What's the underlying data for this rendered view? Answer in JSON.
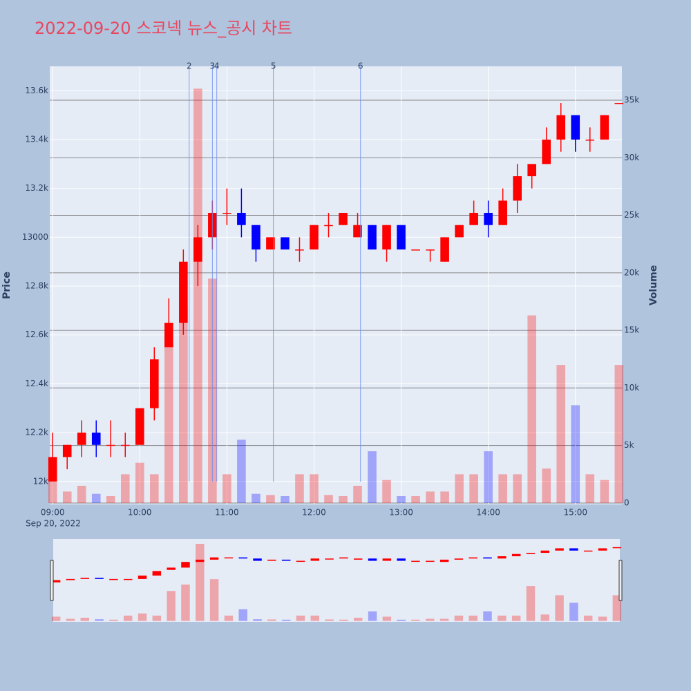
{
  "chart_data": {
    "type": "candlestick",
    "title": "2022-09-20 스코넥 뉴스_공시 차트",
    "ylabel": "Price",
    "y2label": "Volume",
    "x_date": "Sep 20, 2022",
    "x": [
      "09:00",
      "09:10",
      "09:20",
      "09:30",
      "09:40",
      "09:50",
      "10:00",
      "10:10",
      "10:20",
      "10:30",
      "10:40",
      "10:50",
      "11:00",
      "11:10",
      "11:20",
      "11:30",
      "11:40",
      "11:50",
      "12:00",
      "12:10",
      "12:20",
      "12:30",
      "12:40",
      "12:50",
      "13:00",
      "13:10",
      "13:20",
      "13:30",
      "13:40",
      "13:50",
      "14:00",
      "14:10",
      "14:20",
      "14:30",
      "14:40",
      "14:50",
      "15:00",
      "15:10",
      "15:20",
      "15:30"
    ],
    "open": [
      12000,
      12100,
      12150,
      12200,
      12150,
      12150,
      12150,
      12300,
      12550,
      12650,
      12900,
      13000,
      13100,
      13100,
      13050,
      12950,
      13000,
      12950,
      12950,
      13050,
      13050,
      13000,
      13050,
      12950,
      13050,
      12950,
      12950,
      12900,
      13000,
      13050,
      13100,
      13050,
      13150,
      13250,
      13300,
      13400,
      13500,
      13400,
      13400,
      13550
    ],
    "high": [
      12200,
      12150,
      12250,
      12250,
      12250,
      12200,
      12300,
      12550,
      12750,
      12950,
      13050,
      13150,
      13200,
      13200,
      13050,
      13000,
      13000,
      13000,
      13050,
      13100,
      13100,
      13100,
      13050,
      13050,
      13050,
      12950,
      12950,
      13000,
      13050,
      13150,
      13150,
      13200,
      13300,
      13300,
      13450,
      13550,
      13500,
      13450,
      13500,
      13550
    ],
    "low": [
      12000,
      12050,
      12100,
      12100,
      12100,
      12100,
      12150,
      12250,
      12550,
      12600,
      12800,
      12950,
      13050,
      13000,
      12900,
      12950,
      12950,
      12900,
      12950,
      13000,
      13050,
      13000,
      12950,
      12900,
      12950,
      12950,
      12900,
      12900,
      13000,
      13050,
      13000,
      13050,
      13100,
      13200,
      13300,
      13350,
      13350,
      13350,
      13400,
      13550
    ],
    "close": [
      12100,
      12150,
      12200,
      12150,
      12150,
      12150,
      12300,
      12500,
      12650,
      12900,
      13000,
      13100,
      13100,
      13050,
      12950,
      13000,
      12950,
      12950,
      13050,
      13050,
      13100,
      13050,
      12950,
      13050,
      12950,
      12950,
      12950,
      13000,
      13050,
      13100,
      13050,
      13150,
      13250,
      13300,
      13400,
      13500,
      13400,
      13400,
      13500,
      13550
    ],
    "volume": [
      2000,
      1000,
      1500,
      800,
      600,
      2500,
      3500,
      2500,
      14000,
      17000,
      36000,
      19500,
      2500,
      5500,
      800,
      700,
      600,
      2500,
      2500,
      700,
      600,
      1500,
      4500,
      2000,
      600,
      600,
      1000,
      1000,
      2500,
      2500,
      4500,
      2500,
      2500,
      16300,
      3000,
      12000,
      8500,
      2500,
      2000,
      12000
    ],
    "increasing_color": "#ff0000",
    "decreasing_color": "#0000ff",
    "xlim": [
      "08:58",
      "15:32"
    ],
    "xticks": [
      "09:00",
      "10:00",
      "11:00",
      "12:00",
      "13:00",
      "14:00",
      "15:00"
    ],
    "ylim": [
      11906,
      13700
    ],
    "yticks": [
      {
        "value": 12000,
        "label": "12k"
      },
      {
        "value": 12200,
        "label": "12.2k"
      },
      {
        "value": 12400,
        "label": "12.4k"
      },
      {
        "value": 12600,
        "label": "12.6k"
      },
      {
        "value": 12800,
        "label": "12.8k"
      },
      13000,
      {
        "value": 13200,
        "label": "13.2k"
      },
      {
        "value": 13400,
        "label": "13.4k"
      },
      {
        "value": 13600,
        "label": "13.6k"
      }
    ],
    "y2lim": [
      -120,
      37940
    ],
    "y2ticks": [
      0,
      {
        "value": 5000,
        "label": "5k"
      },
      {
        "value": 10000,
        "label": "10k"
      },
      {
        "value": 15000,
        "label": "15k"
      },
      {
        "value": 20000,
        "label": "20k"
      },
      {
        "value": 25000,
        "label": "25k"
      },
      {
        "value": 30000,
        "label": "30k"
      },
      {
        "value": 35000,
        "label": "35k"
      }
    ],
    "annotations": [
      {
        "x": "10:34",
        "label": "2"
      },
      {
        "x": "10:50",
        "label": "3"
      },
      {
        "x": "10:53",
        "label": "4"
      },
      {
        "x": "11:32",
        "label": "5"
      },
      {
        "x": "12:32",
        "label": "6"
      }
    ]
  }
}
